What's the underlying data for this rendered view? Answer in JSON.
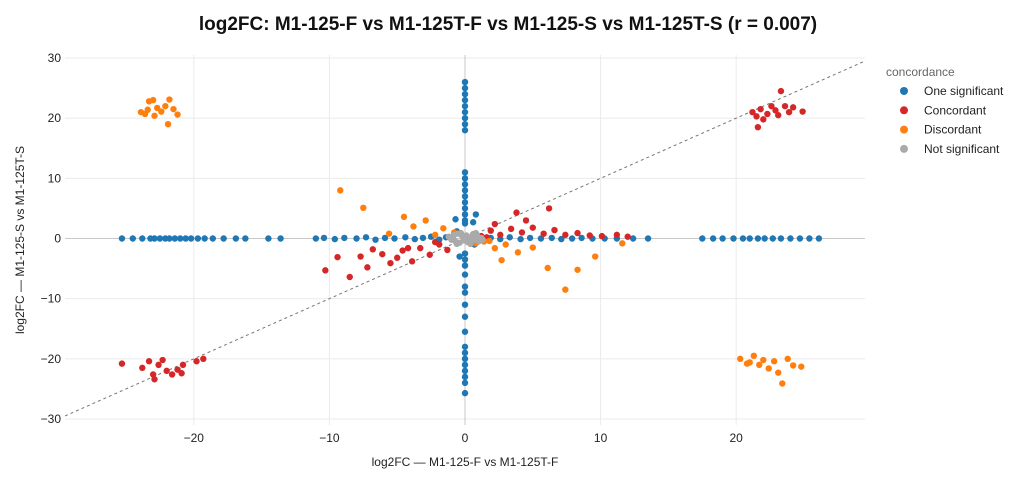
{
  "chart_data": {
    "type": "scatter",
    "title": "log2FC: M1-125-F vs M1-125T-F vs M1-125-S vs M1-125T-S (r = 0.007)",
    "xlabel": "log2FC — M1-125-F vs M1-125T-F",
    "ylabel": "log2FC — M1-125-S vs M1-125T-S",
    "xlim": [
      -29.5,
      29.5
    ],
    "ylim": [
      -31,
      30.5
    ],
    "xticks": [
      -20,
      -10,
      0,
      10,
      20
    ],
    "yticks": [
      -30,
      -20,
      -10,
      0,
      10,
      20,
      30
    ],
    "grid": true,
    "zero_lines": true,
    "diagonal_reference": "y = x",
    "legend": {
      "title": "concordance",
      "placement": "right"
    },
    "series": [
      {
        "name": "One significant",
        "color": "#1f77b4",
        "points": [
          [
            -25.3,
            0
          ],
          [
            -24.5,
            0
          ],
          [
            -23.8,
            0
          ],
          [
            -23.2,
            0
          ],
          [
            -22.9,
            0
          ],
          [
            -22.5,
            0
          ],
          [
            -22.1,
            0
          ],
          [
            -21.8,
            0
          ],
          [
            -21.4,
            0
          ],
          [
            -21.0,
            0
          ],
          [
            -20.6,
            0
          ],
          [
            -20.2,
            0
          ],
          [
            -19.7,
            0
          ],
          [
            -19.2,
            0
          ],
          [
            -18.6,
            0
          ],
          [
            -17.8,
            0
          ],
          [
            -16.9,
            0
          ],
          [
            -16.2,
            0
          ],
          [
            -14.5,
            0
          ],
          [
            -13.6,
            0
          ],
          [
            -11.0,
            0
          ],
          [
            -10.4,
            0.1
          ],
          [
            -9.6,
            -0.1
          ],
          [
            -8.9,
            0.1
          ],
          [
            -8.0,
            0
          ],
          [
            -7.3,
            0.2
          ],
          [
            -6.6,
            -0.2
          ],
          [
            -5.9,
            0.1
          ],
          [
            -5.2,
            0
          ],
          [
            -4.4,
            0.2
          ],
          [
            -3.7,
            -0.1
          ],
          [
            -3.1,
            0.1
          ],
          [
            -2.5,
            0.3
          ],
          [
            -1.9,
            -0.2
          ],
          [
            -1.4,
            0.2
          ],
          [
            -0.9,
            0.3
          ],
          [
            0.9,
            0.2
          ],
          [
            1.4,
            -0.1
          ],
          [
            1.9,
            0.1
          ],
          [
            2.6,
            -0.1
          ],
          [
            3.3,
            0.2
          ],
          [
            4.1,
            -0.1
          ],
          [
            4.8,
            0.1
          ],
          [
            5.6,
            0
          ],
          [
            6.4,
            0.1
          ],
          [
            7.1,
            -0.1
          ],
          [
            7.9,
            0
          ],
          [
            8.6,
            0.1
          ],
          [
            9.4,
            0
          ],
          [
            10.3,
            0
          ],
          [
            11.2,
            0
          ],
          [
            12.4,
            0
          ],
          [
            13.5,
            0
          ],
          [
            17.5,
            0
          ],
          [
            18.3,
            0
          ],
          [
            19.0,
            0
          ],
          [
            19.8,
            0
          ],
          [
            20.5,
            0
          ],
          [
            21.0,
            0
          ],
          [
            21.6,
            0
          ],
          [
            22.1,
            0
          ],
          [
            22.7,
            0
          ],
          [
            23.3,
            0
          ],
          [
            24.0,
            0
          ],
          [
            24.7,
            0
          ],
          [
            25.4,
            0
          ],
          [
            26.1,
            0
          ],
          [
            0,
            26.0
          ],
          [
            0,
            25.0
          ],
          [
            0,
            24.0
          ],
          [
            0,
            23.0
          ],
          [
            0,
            22.0
          ],
          [
            0,
            21.0
          ],
          [
            0,
            20.0
          ],
          [
            0,
            19.0
          ],
          [
            0,
            18.0
          ],
          [
            0,
            11.0
          ],
          [
            0,
            10.0
          ],
          [
            0,
            9.0
          ],
          [
            0,
            8.0
          ],
          [
            0,
            7.0
          ],
          [
            0,
            6.0
          ],
          [
            0,
            5.0
          ],
          [
            0,
            4.0
          ],
          [
            0,
            3.0
          ],
          [
            0,
            2.5
          ],
          [
            0,
            -2.5
          ],
          [
            0,
            -3.5
          ],
          [
            0,
            -4.5
          ],
          [
            0,
            -6.0
          ],
          [
            0,
            -8.0
          ],
          [
            0,
            -9.0
          ],
          [
            0,
            -11.0
          ],
          [
            0,
            -13.0
          ],
          [
            0,
            -15.5
          ],
          [
            0,
            -18.0
          ],
          [
            0,
            -19.0
          ],
          [
            0,
            -20.0
          ],
          [
            0,
            -21.0
          ],
          [
            0,
            -22.0
          ],
          [
            0,
            -23.0
          ],
          [
            0,
            -24.0
          ],
          [
            0,
            -25.7
          ],
          [
            -0.7,
            3.2
          ],
          [
            0.8,
            4.0
          ],
          [
            -0.4,
            -3.0
          ],
          [
            0.6,
            2.7
          ],
          [
            -0.6,
            1.2
          ],
          [
            0.7,
            -1.0
          ]
        ]
      },
      {
        "name": "Concordant",
        "color": "#d62728",
        "points": [
          [
            21.2,
            21.0
          ],
          [
            21.5,
            20.3
          ],
          [
            21.8,
            21.5
          ],
          [
            22.0,
            19.8
          ],
          [
            22.3,
            20.7
          ],
          [
            22.6,
            22.0
          ],
          [
            22.9,
            21.3
          ],
          [
            23.1,
            20.5
          ],
          [
            23.3,
            24.5
          ],
          [
            23.6,
            22.0
          ],
          [
            23.9,
            21.0
          ],
          [
            24.2,
            21.8
          ],
          [
            24.9,
            21.1
          ],
          [
            21.6,
            18.5
          ],
          [
            -25.3,
            -20.8
          ],
          [
            -23.8,
            -21.5
          ],
          [
            -23.3,
            -20.4
          ],
          [
            -22.9,
            -23.4
          ],
          [
            -22.6,
            -21.0
          ],
          [
            -22.3,
            -20.2
          ],
          [
            -22.0,
            -22.0
          ],
          [
            -21.6,
            -22.6
          ],
          [
            -21.2,
            -21.8
          ],
          [
            -20.8,
            -21.0
          ],
          [
            -19.8,
            -20.4
          ],
          [
            -19.3,
            -20.0
          ],
          [
            -23.0,
            -22.6
          ],
          [
            -20.9,
            -22.4
          ],
          [
            -10.3,
            -5.3
          ],
          [
            -9.4,
            -3.1
          ],
          [
            -8.5,
            -6.4
          ],
          [
            -7.7,
            -3.0
          ],
          [
            -7.2,
            -4.8
          ],
          [
            -6.1,
            -2.6
          ],
          [
            -5.5,
            -4.1
          ],
          [
            -4.6,
            -2.0
          ],
          [
            -3.9,
            -3.8
          ],
          [
            -3.3,
            -1.6
          ],
          [
            -2.6,
            -2.7
          ],
          [
            -1.9,
            -1.0
          ],
          [
            -1.3,
            -1.9
          ],
          [
            -0.6,
            -0.8
          ],
          [
            -4.2,
            -1.6
          ],
          [
            -2.2,
            -0.6
          ],
          [
            -6.8,
            -1.8
          ],
          [
            -5.0,
            -3.2
          ],
          [
            0.6,
            0.7
          ],
          [
            1.2,
            0.4
          ],
          [
            1.9,
            1.3
          ],
          [
            2.6,
            0.6
          ],
          [
            3.4,
            1.6
          ],
          [
            4.2,
            1.0
          ],
          [
            5.0,
            1.8
          ],
          [
            5.8,
            0.8
          ],
          [
            6.6,
            1.4
          ],
          [
            7.4,
            0.6
          ],
          [
            8.3,
            0.9
          ],
          [
            9.2,
            0.5
          ],
          [
            10.1,
            0.4
          ],
          [
            11.2,
            0.6
          ],
          [
            12.0,
            0.3
          ],
          [
            4.5,
            3.0
          ],
          [
            6.2,
            5.0
          ],
          [
            3.8,
            4.3
          ],
          [
            2.2,
            2.4
          ],
          [
            1.6,
            0.2
          ]
        ]
      },
      {
        "name": "Discordant",
        "color": "#ff7f0e",
        "points": [
          [
            -23.9,
            21.0
          ],
          [
            -23.6,
            20.7
          ],
          [
            -23.3,
            22.8
          ],
          [
            -23.0,
            23.0
          ],
          [
            -22.7,
            21.7
          ],
          [
            -22.4,
            21.1
          ],
          [
            -22.1,
            22.0
          ],
          [
            -21.8,
            23.1
          ],
          [
            -21.5,
            21.5
          ],
          [
            -21.2,
            20.6
          ],
          [
            -22.9,
            20.4
          ],
          [
            -21.9,
            19.0
          ],
          [
            -23.4,
            21.4
          ],
          [
            20.3,
            -20.0
          ],
          [
            20.8,
            -20.8
          ],
          [
            21.3,
            -19.5
          ],
          [
            21.7,
            -21.0
          ],
          [
            22.0,
            -20.2
          ],
          [
            22.4,
            -21.6
          ],
          [
            22.8,
            -20.4
          ],
          [
            23.1,
            -22.3
          ],
          [
            23.4,
            -24.1
          ],
          [
            23.8,
            -20.0
          ],
          [
            24.2,
            -21.1
          ],
          [
            24.8,
            -21.3
          ],
          [
            21.0,
            -20.6
          ],
          [
            -9.2,
            8.0
          ],
          [
            -7.5,
            5.1
          ],
          [
            -4.5,
            3.6
          ],
          [
            -2.9,
            3.0
          ],
          [
            -1.6,
            1.7
          ],
          [
            -0.8,
            1.0
          ],
          [
            -3.8,
            2.0
          ],
          [
            -5.6,
            0.8
          ],
          [
            -2.2,
            0.6
          ],
          [
            0.8,
            -0.8
          ],
          [
            1.4,
            -0.5
          ],
          [
            2.2,
            -1.6
          ],
          [
            3.0,
            -1.0
          ],
          [
            3.9,
            -2.3
          ],
          [
            5.0,
            -1.5
          ],
          [
            6.1,
            -4.9
          ],
          [
            7.4,
            -8.5
          ],
          [
            8.3,
            -5.2
          ],
          [
            9.6,
            -3.0
          ],
          [
            11.6,
            -0.8
          ],
          [
            1.8,
            -0.4
          ],
          [
            2.7,
            -3.6
          ]
        ]
      },
      {
        "name": "Not significant",
        "color": "#aaaaaa",
        "points": [
          [
            -1.2,
            0.3
          ],
          [
            -1.0,
            -0.2
          ],
          [
            -0.8,
            0.6
          ],
          [
            -0.7,
            -0.5
          ],
          [
            -0.5,
            0.8
          ],
          [
            -0.4,
            -0.7
          ],
          [
            -0.2,
            0.4
          ],
          [
            -0.1,
            -0.3
          ],
          [
            0,
            0
          ],
          [
            0.1,
            0.5
          ],
          [
            0.2,
            -0.6
          ],
          [
            0.3,
            0.2
          ],
          [
            0.5,
            -0.3
          ],
          [
            0.6,
            0.7
          ],
          [
            0.7,
            -0.2
          ],
          [
            0.9,
            0.4
          ],
          [
            1.0,
            -0.5
          ],
          [
            1.2,
            0.1
          ],
          [
            -0.9,
            0.1
          ],
          [
            -0.3,
            0.9
          ],
          [
            0.4,
            -0.9
          ],
          [
            -0.6,
            -0.9
          ],
          [
            0.8,
            0.9
          ],
          [
            1.3,
            -0.2
          ]
        ]
      }
    ]
  }
}
